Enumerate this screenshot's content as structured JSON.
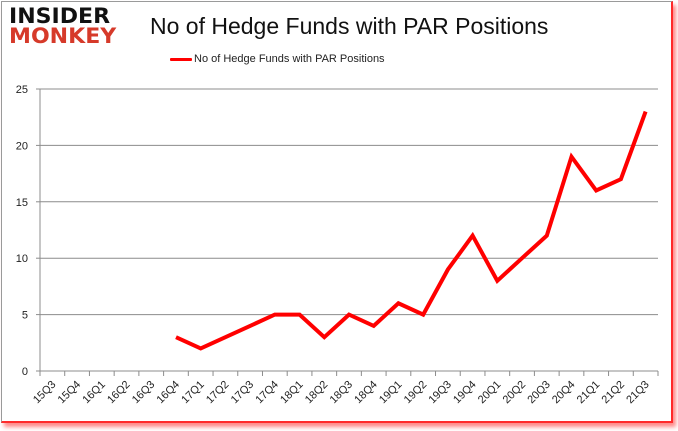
{
  "logo": {
    "line1": "INSIDER",
    "line2": "MONKEY"
  },
  "header": {
    "title": "No of Hedge Funds with PAR Positions"
  },
  "legend": {
    "label": "No of Hedge Funds with PAR Positions",
    "color": "#ff0000"
  },
  "chart_data": {
    "type": "line",
    "title": "No of Hedge Funds with PAR Positions",
    "xlabel": "",
    "ylabel": "",
    "ylim": [
      0,
      25
    ],
    "yticks": [
      0,
      5,
      10,
      15,
      20,
      25
    ],
    "grid": true,
    "legend_position": "top",
    "categories": [
      "15Q3",
      "15Q4",
      "16Q1",
      "16Q2",
      "16Q3",
      "16Q4",
      "17Q1",
      "17Q2",
      "17Q3",
      "17Q4",
      "18Q1",
      "18Q2",
      "18Q3",
      "18Q4",
      "19Q1",
      "19Q2",
      "19Q3",
      "19Q4",
      "20Q1",
      "20Q2",
      "20Q3",
      "20Q4",
      "21Q1",
      "21Q2",
      "21Q3"
    ],
    "series": [
      {
        "name": "No of Hedge Funds with PAR Positions",
        "color": "#ff0000",
        "values": [
          null,
          null,
          null,
          null,
          null,
          3,
          2,
          3,
          4,
          5,
          5,
          3,
          5,
          4,
          6,
          5,
          9,
          12,
          8,
          10,
          12,
          19,
          16,
          17,
          23
        ]
      }
    ]
  }
}
